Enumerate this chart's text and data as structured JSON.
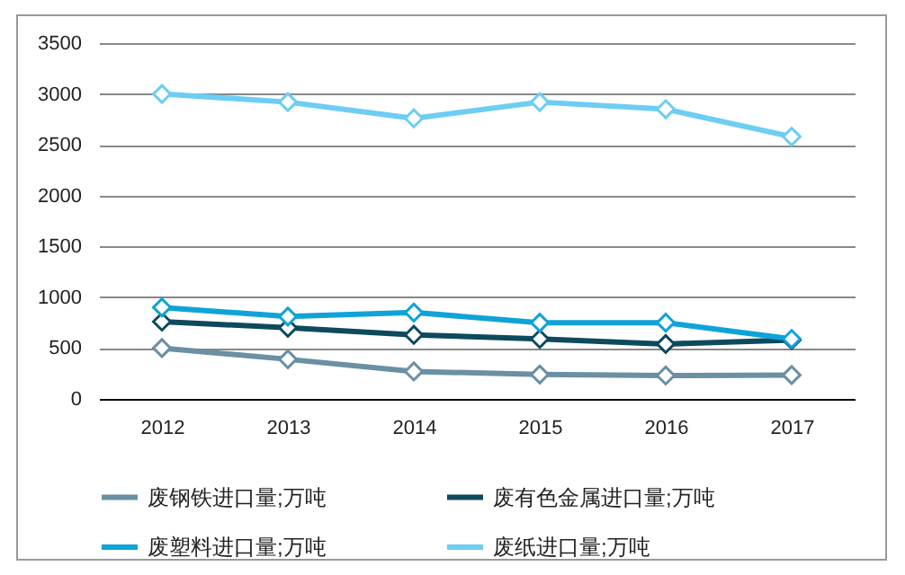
{
  "chart_data": {
    "type": "line",
    "categories": [
      "2012",
      "2013",
      "2014",
      "2015",
      "2016",
      "2017"
    ],
    "series": [
      {
        "name": "废钢铁进口量;万吨",
        "color": "#6b8fa3",
        "values": [
          500,
          390,
          270,
          240,
          230,
          235
        ]
      },
      {
        "name": "废有色金属进口量;万吨",
        "color": "#0d4a5e",
        "values": [
          760,
          700,
          630,
          590,
          540,
          580
        ]
      },
      {
        "name": "废塑料进口量;万吨",
        "color": "#0fa3d8",
        "values": [
          900,
          810,
          850,
          750,
          750,
          590
        ]
      },
      {
        "name": "废纸进口量;万吨",
        "color": "#6dcdf2",
        "values": [
          3000,
          2920,
          2760,
          2920,
          2850,
          2580
        ]
      }
    ],
    "ylim": [
      0,
      3500
    ],
    "yticks": [
      0,
      500,
      1000,
      1500,
      2000,
      2500,
      3000,
      3500
    ],
    "grid": "y",
    "legend": "bottom",
    "marker": "diamond",
    "line_style": "solid"
  }
}
